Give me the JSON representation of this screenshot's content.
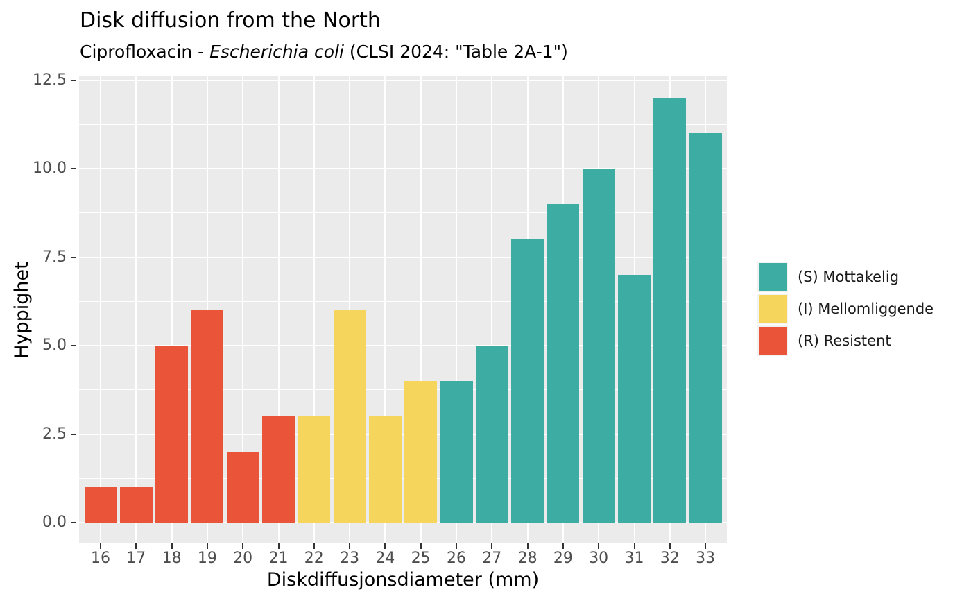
{
  "chart_data": {
    "type": "bar",
    "title": "Disk diffusion from the North",
    "subtitle": {
      "prefix": "Ciprofloxacin - ",
      "italic": "Escherichia coli",
      "suffix": " (CLSI 2024: \"Table 2A-1\")"
    },
    "xlabel": "Diskdiffusjonsdiameter (mm)",
    "ylabel": "Hyppighet",
    "categories": [
      16,
      17,
      18,
      19,
      20,
      21,
      22,
      23,
      24,
      25,
      26,
      27,
      28,
      29,
      30,
      31,
      32,
      33
    ],
    "values": [
      1,
      1,
      5,
      6,
      2,
      3,
      3,
      6,
      3,
      4,
      4,
      5,
      8,
      9,
      10,
      7,
      12,
      11
    ],
    "bar_groups": [
      "R",
      "R",
      "R",
      "R",
      "R",
      "R",
      "I",
      "I",
      "I",
      "I",
      "S",
      "S",
      "S",
      "S",
      "S",
      "S",
      "S",
      "S"
    ],
    "group_colors": {
      "S": "#3DADA3",
      "I": "#F5D55C",
      "R": "#EA5539"
    },
    "y_ticks": [
      {
        "label": "0.0",
        "value": 0
      },
      {
        "label": "2.5",
        "value": 2.5
      },
      {
        "label": "5.0",
        "value": 5
      },
      {
        "label": "7.5",
        "value": 7.5
      },
      {
        "label": "10.0",
        "value": 10
      },
      {
        "label": "12.5",
        "value": 12.5
      }
    ],
    "y_minor": [
      1.25,
      3.75,
      6.25,
      8.75,
      11.25
    ],
    "ylim": [
      0,
      12.5
    ],
    "grid": "horizontal major+minor, vertical major only",
    "legend_position": "right",
    "legend": [
      {
        "group": "S",
        "label": "(S) Mottakelig"
      },
      {
        "group": "I",
        "label": "(I) Mellomliggende"
      },
      {
        "group": "R",
        "label": "(R) Resistent"
      }
    ],
    "panel_bg": "#EBEBEB",
    "grid_color": "#FFFFFF",
    "tick_label_color": "#4D4D4D",
    "tick_mark_color": "#333333"
  }
}
